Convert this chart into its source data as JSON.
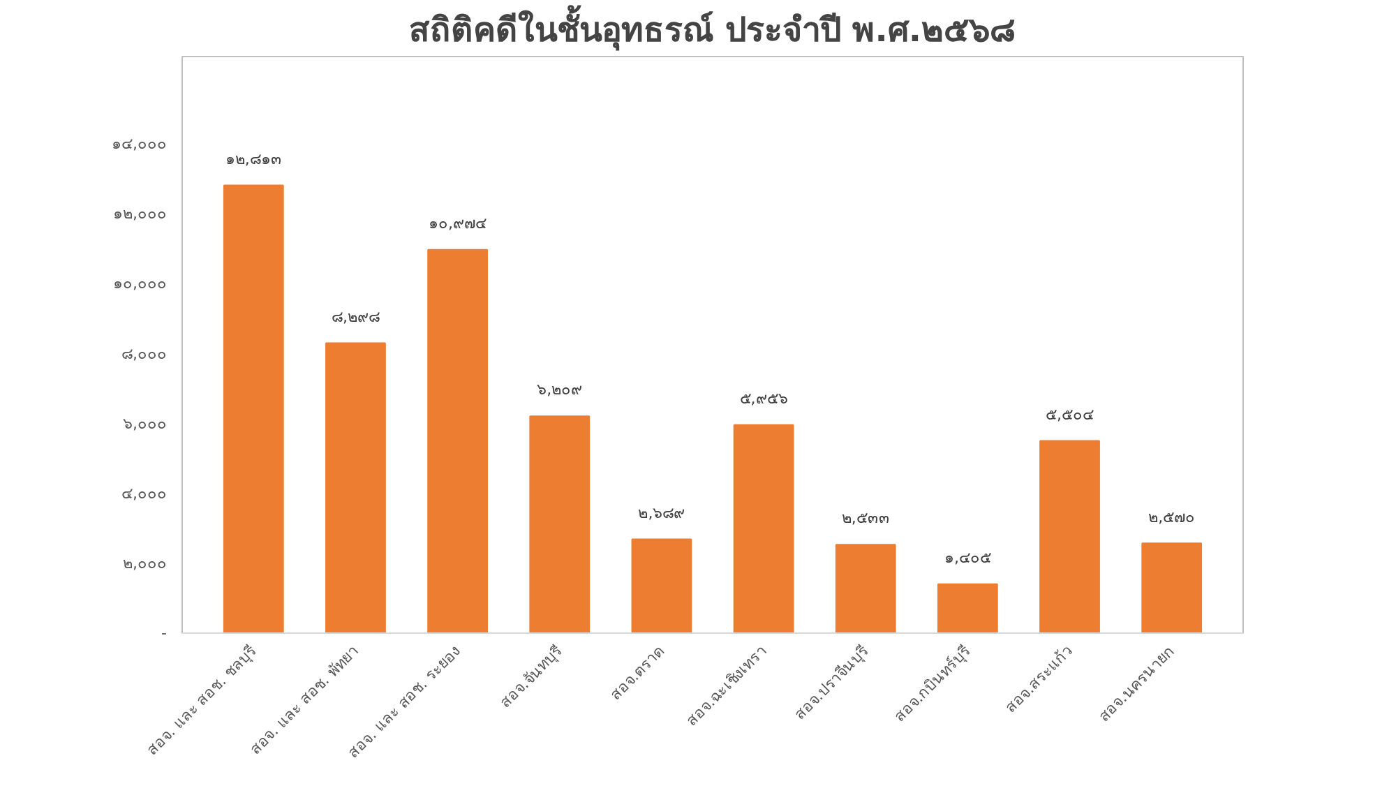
{
  "chart_data": {
    "type": "bar",
    "title": "สถิติคดีในชั้นอุทธรณ์ ประจำปี พ.ศ.๒๕๖๘",
    "categories": [
      "สอจ. และ สอช. ชลบุรี",
      "สอจ. และ สอช. พัทยา",
      "สอจ. และ สอช. ระยอง",
      "สอจ.จันทบุรี",
      "สอจ.ตราด",
      "สอจ.ฉะเชิงเทรา",
      "สอจ.ปราจีนบุรี",
      "สอจ.กบินทร์บุรี",
      "สอจ.สระแก้ว",
      "สอจ.นครนายก"
    ],
    "values": [
      12813,
      8298,
      10974,
      6209,
      2689,
      5956,
      2533,
      1405,
      5504,
      2570
    ],
    "value_labels": [
      "๑๒,๘๑๓",
      "๘,๒๙๘",
      "๑๐,๙๗๔",
      "๖,๒๐๙",
      "๒,๖๘๙",
      "๕,๙๕๖",
      "๒,๕๓๓",
      "๑,๔๐๕",
      "๕,๕๐๔",
      "๒,๕๗๐"
    ],
    "color": "#ed7d31",
    "ylim": [
      0,
      16500
    ],
    "yticks": [
      {
        "value": 0,
        "label": "-"
      },
      {
        "value": 2000,
        "label": "๒,๐๐๐"
      },
      {
        "value": 4000,
        "label": "๔,๐๐๐"
      },
      {
        "value": 6000,
        "label": "๖,๐๐๐"
      },
      {
        "value": 8000,
        "label": "๘,๐๐๐"
      },
      {
        "value": 10000,
        "label": "๑๐,๐๐๐"
      },
      {
        "value": 12000,
        "label": "๑๒,๐๐๐"
      },
      {
        "value": 14000,
        "label": "๑๔,๐๐๐"
      }
    ],
    "grid": false
  }
}
